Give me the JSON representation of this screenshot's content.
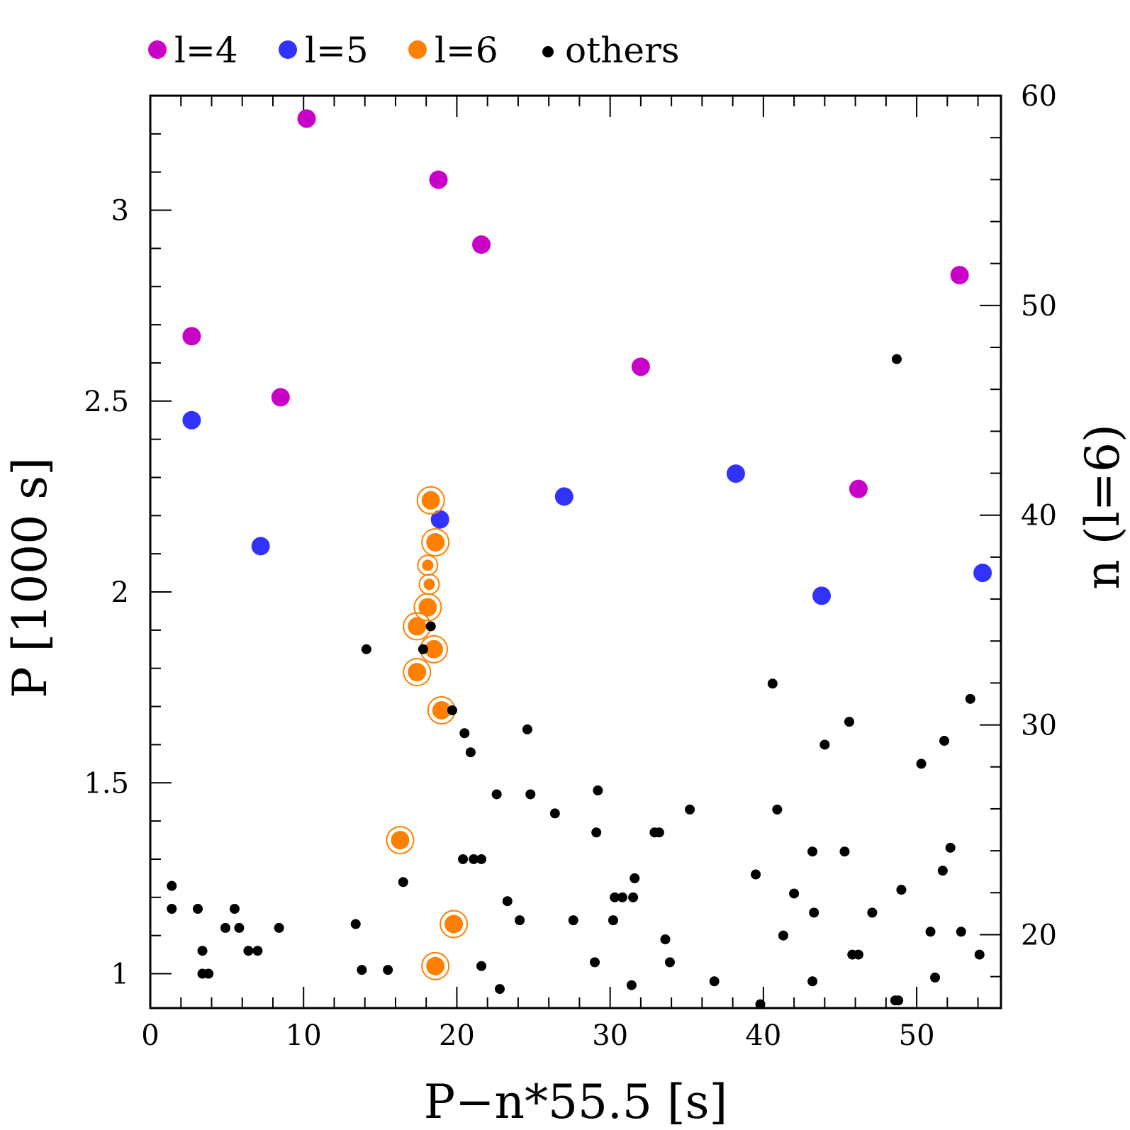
{
  "chart_data": {
    "type": "scatter",
    "xlabel": "P−n*55.5  [s]",
    "ylabel": "P  [1000 s]",
    "ylabel_right": "n  (l=6)",
    "xlim": [
      0,
      55.5
    ],
    "ylim": [
      0.91,
      3.3
    ],
    "y2lim": [
      16.5,
      60
    ],
    "x_ticks": [
      0,
      10,
      20,
      30,
      40,
      50
    ],
    "x_tick_labels": [
      "0",
      "10",
      "20",
      "30",
      "40",
      "50"
    ],
    "y_ticks": [
      1,
      1.5,
      2,
      2.5,
      3
    ],
    "y_tick_labels": [
      "1",
      "1.5",
      "2",
      "2.5",
      "3"
    ],
    "y2_ticks": [
      20,
      30,
      40,
      50,
      60
    ],
    "y2_tick_labels": [
      "20",
      "30",
      "40",
      "50",
      "60"
    ],
    "colors": {
      "l4": "#c800c8",
      "l5": "#3232ff",
      "l6": "#ff8000",
      "others": "#000000"
    },
    "series": [
      {
        "name": "l=4",
        "key": "l4",
        "points": [
          [
            10.2,
            3.24
          ],
          [
            18.8,
            3.08
          ],
          [
            21.6,
            2.91
          ],
          [
            2.7,
            2.67
          ],
          [
            8.5,
            2.51
          ],
          [
            32.0,
            2.59
          ],
          [
            52.8,
            2.83
          ],
          [
            46.2,
            2.27
          ]
        ]
      },
      {
        "name": "l=5",
        "key": "l5",
        "points": [
          [
            2.7,
            2.45
          ],
          [
            7.2,
            2.12
          ],
          [
            18.9,
            2.19
          ],
          [
            27.0,
            2.25
          ],
          [
            38.2,
            2.31
          ],
          [
            43.8,
            1.99
          ],
          [
            54.3,
            2.05
          ]
        ]
      },
      {
        "name": "l=6",
        "key": "l6",
        "points": [
          [
            18.3,
            2.24,
            1
          ],
          [
            18.6,
            2.13,
            1
          ],
          [
            18.1,
            2.07,
            0
          ],
          [
            18.2,
            2.02,
            0
          ],
          [
            18.1,
            1.96,
            1
          ],
          [
            17.4,
            1.91,
            1
          ],
          [
            18.5,
            1.85,
            1
          ],
          [
            17.4,
            1.79,
            1
          ],
          [
            19.0,
            1.69,
            1
          ],
          [
            16.3,
            1.35,
            1
          ],
          [
            19.8,
            1.13,
            1
          ],
          [
            18.6,
            1.02,
            1
          ]
        ]
      },
      {
        "name": "others",
        "key": "others",
        "points": [
          [
            48.7,
            2.61
          ],
          [
            18.3,
            1.91
          ],
          [
            17.8,
            1.85
          ],
          [
            14.1,
            1.85
          ],
          [
            40.6,
            1.76
          ],
          [
            53.5,
            1.72
          ],
          [
            19.7,
            1.69
          ],
          [
            45.6,
            1.66
          ],
          [
            24.6,
            1.64
          ],
          [
            20.5,
            1.63
          ],
          [
            51.8,
            1.61
          ],
          [
            44.0,
            1.6
          ],
          [
            20.9,
            1.58
          ],
          [
            50.3,
            1.55
          ],
          [
            22.6,
            1.47
          ],
          [
            24.8,
            1.47
          ],
          [
            29.2,
            1.48
          ],
          [
            40.9,
            1.43
          ],
          [
            35.2,
            1.43
          ],
          [
            26.4,
            1.42
          ],
          [
            29.1,
            1.37
          ],
          [
            32.9,
            1.37
          ],
          [
            33.2,
            1.37
          ],
          [
            43.2,
            1.32
          ],
          [
            45.3,
            1.32
          ],
          [
            52.2,
            1.33
          ],
          [
            20.4,
            1.3
          ],
          [
            21.1,
            1.3
          ],
          [
            21.6,
            1.3
          ],
          [
            51.7,
            1.27
          ],
          [
            39.5,
            1.26
          ],
          [
            31.6,
            1.25
          ],
          [
            16.5,
            1.24
          ],
          [
            1.4,
            1.23
          ],
          [
            49.0,
            1.22
          ],
          [
            42.0,
            1.21
          ],
          [
            30.3,
            1.2
          ],
          [
            30.8,
            1.2
          ],
          [
            31.5,
            1.2
          ],
          [
            23.3,
            1.19
          ],
          [
            1.4,
            1.17
          ],
          [
            3.1,
            1.17
          ],
          [
            5.5,
            1.17
          ],
          [
            47.1,
            1.16
          ],
          [
            43.3,
            1.16
          ],
          [
            27.6,
            1.14
          ],
          [
            24.1,
            1.14
          ],
          [
            30.2,
            1.14
          ],
          [
            13.4,
            1.13
          ],
          [
            8.4,
            1.12
          ],
          [
            4.9,
            1.12
          ],
          [
            5.8,
            1.12
          ],
          [
            50.9,
            1.11
          ],
          [
            52.9,
            1.11
          ],
          [
            41.3,
            1.1
          ],
          [
            33.6,
            1.09
          ],
          [
            6.4,
            1.06
          ],
          [
            7.0,
            1.06
          ],
          [
            3.4,
            1.06
          ],
          [
            54.1,
            1.05
          ],
          [
            45.8,
            1.05
          ],
          [
            46.2,
            1.05
          ],
          [
            33.9,
            1.03
          ],
          [
            29.0,
            1.03
          ],
          [
            21.6,
            1.02
          ],
          [
            13.8,
            1.01
          ],
          [
            15.5,
            1.01
          ],
          [
            3.4,
            1.0
          ],
          [
            3.8,
            1.0
          ],
          [
            51.2,
            0.99
          ],
          [
            43.2,
            0.98
          ],
          [
            36.8,
            0.98
          ],
          [
            31.4,
            0.97
          ],
          [
            22.8,
            0.96
          ],
          [
            48.6,
            0.93
          ],
          [
            48.8,
            0.93
          ],
          [
            39.8,
            0.92
          ]
        ]
      }
    ],
    "legend": {
      "position": "top",
      "entries": [
        "l=4",
        "l=5",
        "l=6",
        "others"
      ]
    }
  }
}
